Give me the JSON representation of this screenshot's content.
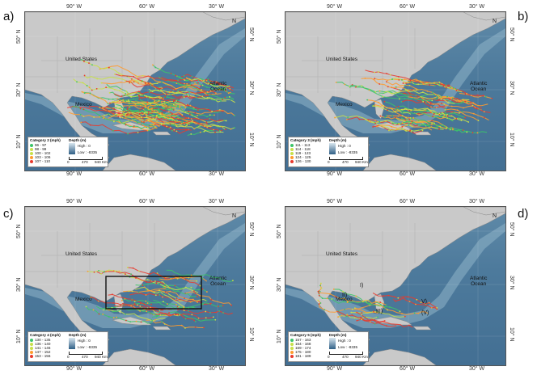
{
  "panels": [
    {
      "letter": "a)",
      "legend_title": "Category 2 (mph)",
      "ranges": [
        "96 - 97",
        "98 - 99",
        "100 - 102",
        "103 - 106",
        "107 - 110"
      ],
      "density": 1.0,
      "box": false,
      "annots": []
    },
    {
      "letter": "b)",
      "legend_title": "Category 3 (mph)",
      "ranges": [
        "111 - 113",
        "114 - 118",
        "119 - 123",
        "124 - 125",
        "126 - 130"
      ],
      "density": 0.55,
      "box": false,
      "annots": []
    },
    {
      "letter": "c)",
      "legend_title": "Category 4 (mph)",
      "ranges": [
        "130 - 135",
        "136 - 140",
        "141 - 146",
        "147 - 152",
        "153 - 156"
      ],
      "density": 0.35,
      "box": true,
      "annots": []
    },
    {
      "letter": "d)",
      "legend_title": "Category 5 (mph)",
      "ranges": [
        "157 - 163",
        "164 - 168",
        "169 - 174",
        "175 - 180",
        "181 - 189"
      ],
      "density": 0.12,
      "box": false,
      "annots": [
        "I)",
        "II)",
        "III)",
        "V)",
        "(V)"
      ]
    }
  ],
  "labels": {
    "us": "United States",
    "mexico": "Mexico",
    "atlantic": "Atlantic\nOcean",
    "lon": [
      "90° W",
      "60° W",
      "30° W"
    ],
    "lat": [
      "50° N",
      "30° N",
      "10° N"
    ],
    "depth_title": "Depth (m)",
    "high": "High : 0",
    "low": "Low : -8335",
    "scale": [
      "0",
      "470",
      "940 Km"
    ],
    "north": "N"
  },
  "colors": {
    "low": "#3cc46a",
    "mid": "#c8e04a",
    "high": "#ff9b2e",
    "top": "#e83b2e",
    "land": "#c9c9c9",
    "ocean": "#4d7a9c"
  }
}
